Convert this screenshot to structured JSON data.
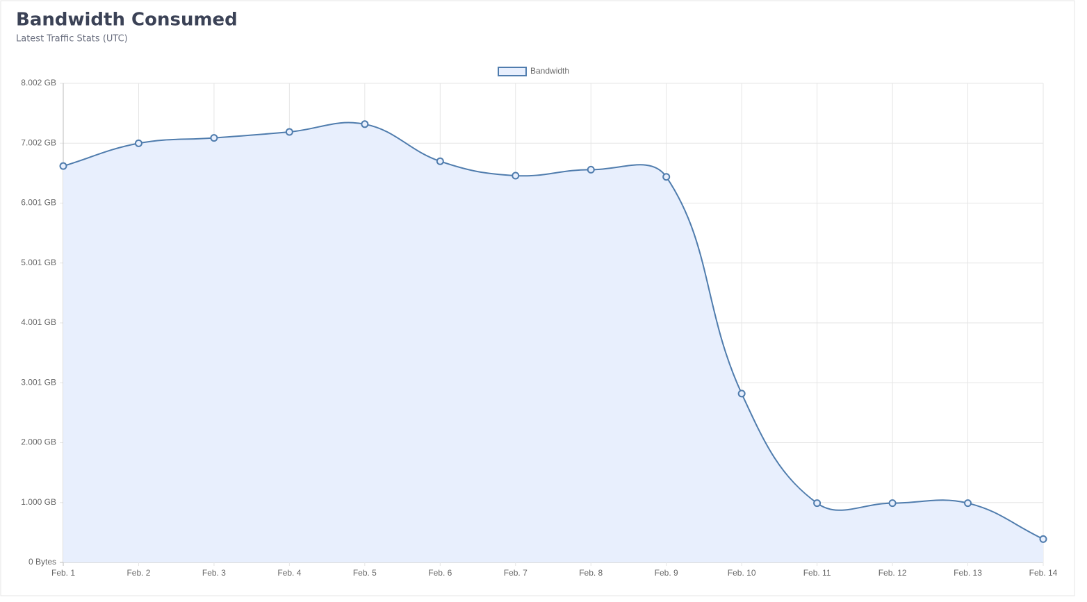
{
  "chart_data": {
    "type": "line",
    "title": "Bandwidth Consumed",
    "subtitle": "Latest Traffic Stats (UTC)",
    "categories": [
      "Feb. 1",
      "Feb. 2",
      "Feb. 3",
      "Feb. 4",
      "Feb. 5",
      "Feb. 6",
      "Feb. 7",
      "Feb. 8",
      "Feb. 9",
      "Feb. 10",
      "Feb. 11",
      "Feb. 12",
      "Feb. 13",
      "Feb. 14"
    ],
    "series": [
      {
        "name": "Bandwidth",
        "color": "#4f7cad",
        "fill": "#e8effd",
        "values": [
          6.62,
          7.0,
          7.09,
          7.19,
          7.32,
          6.7,
          6.46,
          6.56,
          6.44,
          2.82,
          0.99,
          0.99,
          0.99,
          0.39
        ]
      }
    ],
    "ylim": [
      0,
      8.002
    ],
    "yticks": [
      {
        "value": 0,
        "label": "0 Bytes"
      },
      {
        "value": 1.00025,
        "label": "1.000 GB"
      },
      {
        "value": 2.0005,
        "label": "2.000 GB"
      },
      {
        "value": 3.00075,
        "label": "3.001 GB"
      },
      {
        "value": 4.001,
        "label": "4.001 GB"
      },
      {
        "value": 5.00125,
        "label": "5.001 GB"
      },
      {
        "value": 6.0015,
        "label": "6.001 GB"
      },
      {
        "value": 7.00175,
        "label": "7.002 GB"
      },
      {
        "value": 8.002,
        "label": "8.002 GB"
      }
    ],
    "grid": true,
    "legend": "top"
  }
}
